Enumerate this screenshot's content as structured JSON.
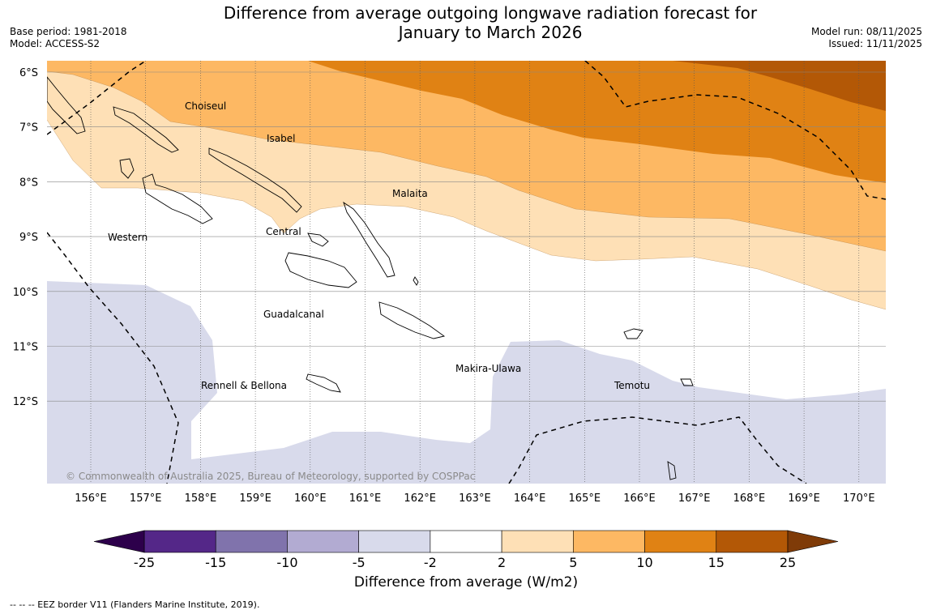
{
  "header": {
    "title_line1": "Difference from average outgoing longwave radiation forecast for",
    "title_line2": "January to March 2026",
    "base_period": "Base period: 1981-2018",
    "model": "Model: ACCESS-S2",
    "model_run": "Model run: 08/11/2025",
    "issued": "Issued: 11/11/2025"
  },
  "map": {
    "lon_labels": [
      "156°E",
      "157°E",
      "158°E",
      "159°E",
      "160°E",
      "161°E",
      "162°E",
      "163°E",
      "164°E",
      "165°E",
      "166°E",
      "167°E",
      "168°E",
      "169°E",
      "170°E"
    ],
    "lat_labels": [
      "6°S",
      "7°S",
      "8°S",
      "9°S",
      "10°S",
      "11°S",
      "12°S"
    ],
    "regions": [
      "Choiseul",
      "Isabel",
      "Malaita",
      "Western",
      "Central",
      "Guadalcanal",
      "Makira-Ulawa",
      "Rennell & Bellona",
      "Temotu"
    ],
    "copyright": "© Commonwealth of Australia 2025, Bureau of Meteorology, supported by COSPPac"
  },
  "colorbar": {
    "ticks": [
      "-25",
      "-15",
      "-10",
      "-5",
      "-2",
      "2",
      "5",
      "10",
      "15",
      "25"
    ],
    "colors": [
      "#542788",
      "#8073ac",
      "#b2abd2",
      "#d8daeb",
      "#ffffff",
      "#fee0b6",
      "#fdb863",
      "#e08214",
      "#b35806"
    ],
    "under_color": "#2d004b",
    "over_color": "#7f3b08",
    "label": "Difference from average (W/m2)"
  },
  "legend": {
    "eez": "--  --  -- EEZ border V11 (Flanders Marine Institute, 2019)."
  }
}
